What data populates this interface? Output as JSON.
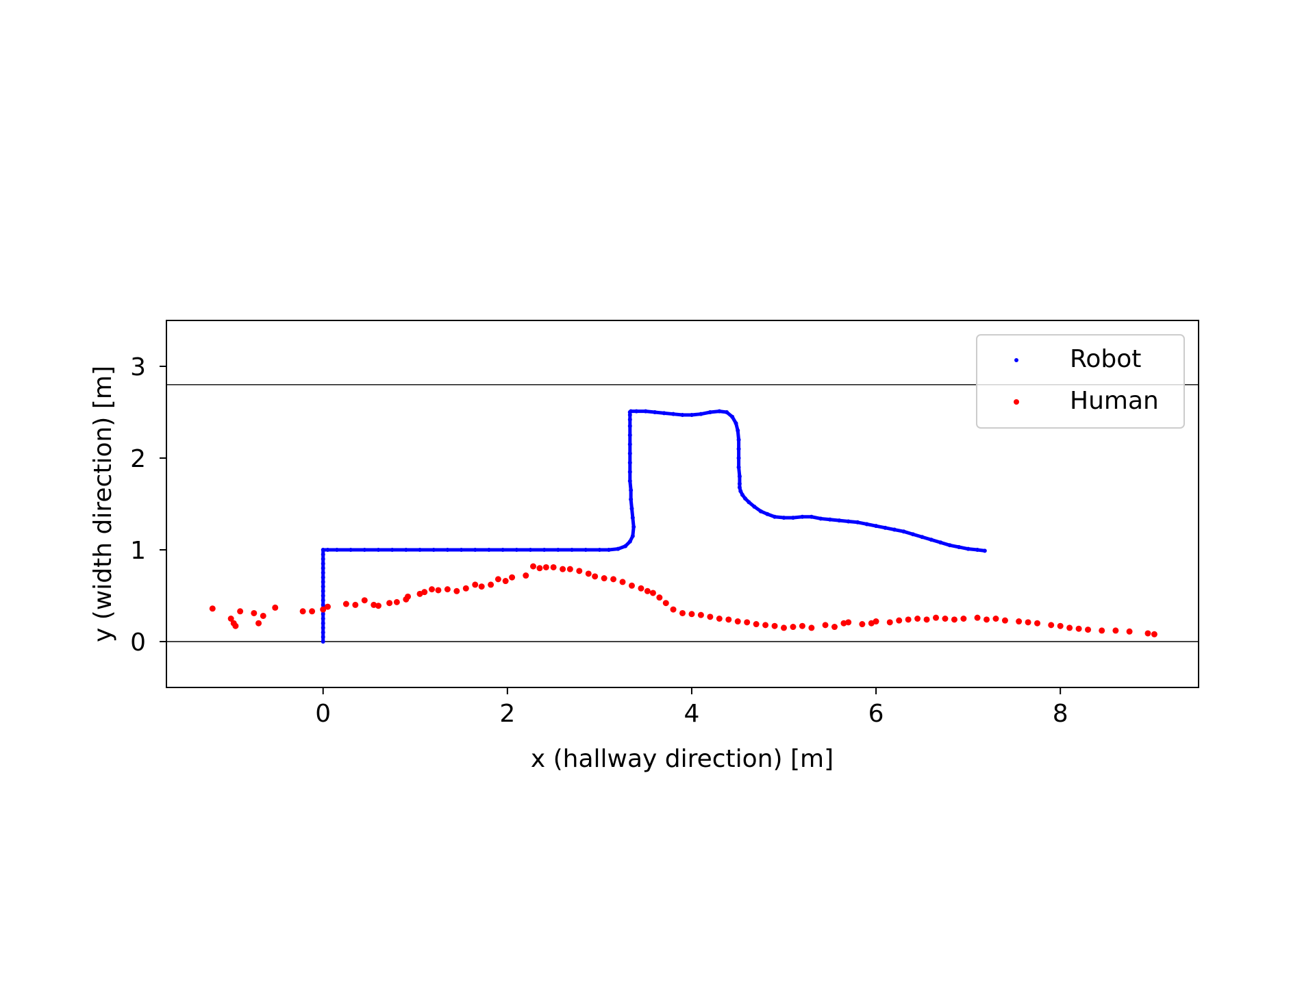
{
  "chart_data": {
    "type": "scatter",
    "xlabel": "x (hallway direction) [m]",
    "ylabel": "y (width direction) [m]",
    "xlim": [
      -1.7,
      9.5
    ],
    "ylim": [
      -0.5,
      3.5
    ],
    "xticks": [
      0,
      2,
      4,
      6,
      8
    ],
    "yticks": [
      0,
      1,
      2,
      3
    ],
    "hlines": [
      0,
      2.8
    ],
    "grid": false,
    "legend": "top-right",
    "series": [
      {
        "name": "Robot",
        "color": "#0000ff",
        "marker": "small-dot",
        "x": [
          0.0,
          0.0,
          0.0,
          0.0,
          0.0,
          0.0,
          0.0,
          0.0,
          0.0,
          0.0,
          0.0,
          0.0,
          0.0,
          0.0,
          0.0,
          0.0,
          0.0,
          0.0,
          0.0,
          0.0,
          0.0,
          0.05,
          0.15,
          0.3,
          0.45,
          0.6,
          0.75,
          0.9,
          1.05,
          1.2,
          1.35,
          1.5,
          1.65,
          1.8,
          1.95,
          2.1,
          2.25,
          2.4,
          2.55,
          2.7,
          2.85,
          3.0,
          3.1,
          3.2,
          3.28,
          3.33,
          3.36,
          3.37,
          3.36,
          3.35,
          3.34,
          3.34,
          3.33,
          3.33,
          3.33,
          3.33,
          3.33,
          3.33,
          3.33,
          3.33,
          3.33,
          3.33,
          3.33,
          3.34,
          3.4,
          3.5,
          3.6,
          3.7,
          3.8,
          3.9,
          4.0,
          4.1,
          4.2,
          4.3,
          4.38,
          4.44,
          4.48,
          4.5,
          4.51,
          4.51,
          4.51,
          4.51,
          4.52,
          4.52,
          4.52,
          4.53,
          4.55,
          4.58,
          4.62,
          4.68,
          4.75,
          4.82,
          4.9,
          5.0,
          5.1,
          5.2,
          5.3,
          5.4,
          5.5,
          5.6,
          5.7,
          5.8,
          5.9,
          6.0,
          6.1,
          6.2,
          6.3,
          6.4,
          6.5,
          6.6,
          6.7,
          6.8,
          6.9,
          7.0,
          7.1,
          7.18
        ],
        "y": [
          0.0,
          0.05,
          0.1,
          0.15,
          0.2,
          0.25,
          0.3,
          0.35,
          0.4,
          0.45,
          0.5,
          0.55,
          0.6,
          0.65,
          0.7,
          0.75,
          0.8,
          0.85,
          0.9,
          0.95,
          1.0,
          1.0,
          1.0,
          1.0,
          1.0,
          1.0,
          1.0,
          1.0,
          1.0,
          1.0,
          1.0,
          1.0,
          1.0,
          1.0,
          1.0,
          1.0,
          1.0,
          1.0,
          1.0,
          1.0,
          1.0,
          1.0,
          1.0,
          1.01,
          1.04,
          1.09,
          1.15,
          1.25,
          1.35,
          1.45,
          1.55,
          1.65,
          1.75,
          1.85,
          1.95,
          2.05,
          2.15,
          2.25,
          2.35,
          2.42,
          2.47,
          2.5,
          2.5,
          2.51,
          2.51,
          2.51,
          2.5,
          2.49,
          2.48,
          2.47,
          2.47,
          2.48,
          2.5,
          2.51,
          2.5,
          2.45,
          2.38,
          2.3,
          2.2,
          2.1,
          2.0,
          1.9,
          1.8,
          1.72,
          1.68,
          1.64,
          1.6,
          1.56,
          1.52,
          1.47,
          1.42,
          1.39,
          1.36,
          1.35,
          1.35,
          1.36,
          1.36,
          1.34,
          1.33,
          1.32,
          1.31,
          1.3,
          1.28,
          1.26,
          1.24,
          1.22,
          1.2,
          1.17,
          1.14,
          1.11,
          1.08,
          1.05,
          1.03,
          1.01,
          1.0,
          0.99
        ]
      },
      {
        "name": "Human",
        "color": "#ff0000",
        "marker": "dot",
        "x": [
          -1.2,
          -1.0,
          -0.95,
          -0.97,
          -0.9,
          -0.75,
          -0.7,
          -0.65,
          -0.52,
          -0.22,
          -0.12,
          0.0,
          0.05,
          0.25,
          0.35,
          0.45,
          0.55,
          0.6,
          0.72,
          0.8,
          0.9,
          0.92,
          1.05,
          1.1,
          1.18,
          1.25,
          1.35,
          1.45,
          1.55,
          1.65,
          1.72,
          1.82,
          1.9,
          1.98,
          2.05,
          2.2,
          2.28,
          2.35,
          2.42,
          2.5,
          2.6,
          2.68,
          2.78,
          2.88,
          2.95,
          3.05,
          3.15,
          3.25,
          3.35,
          3.45,
          3.52,
          3.58,
          3.65,
          3.72,
          3.8,
          3.9,
          4.0,
          4.1,
          4.2,
          4.3,
          4.4,
          4.5,
          4.6,
          4.7,
          4.8,
          4.9,
          5.0,
          5.1,
          5.2,
          5.3,
          5.45,
          5.55,
          5.65,
          5.7,
          5.85,
          5.95,
          6.0,
          6.15,
          6.25,
          6.35,
          6.45,
          6.55,
          6.65,
          6.75,
          6.85,
          6.95,
          7.1,
          7.2,
          7.3,
          7.4,
          7.55,
          7.65,
          7.75,
          7.9,
          8.0,
          8.1,
          8.2,
          8.3,
          8.45,
          8.6,
          8.75,
          8.95,
          9.02
        ],
        "y": [
          0.36,
          0.25,
          0.17,
          0.2,
          0.33,
          0.31,
          0.2,
          0.28,
          0.37,
          0.33,
          0.33,
          0.35,
          0.38,
          0.41,
          0.4,
          0.45,
          0.4,
          0.39,
          0.42,
          0.43,
          0.46,
          0.49,
          0.52,
          0.54,
          0.57,
          0.56,
          0.57,
          0.55,
          0.58,
          0.62,
          0.6,
          0.62,
          0.68,
          0.66,
          0.7,
          0.72,
          0.82,
          0.8,
          0.81,
          0.81,
          0.79,
          0.79,
          0.77,
          0.74,
          0.71,
          0.69,
          0.68,
          0.65,
          0.61,
          0.58,
          0.55,
          0.53,
          0.48,
          0.42,
          0.35,
          0.31,
          0.3,
          0.29,
          0.27,
          0.25,
          0.24,
          0.22,
          0.21,
          0.19,
          0.18,
          0.17,
          0.15,
          0.16,
          0.17,
          0.15,
          0.18,
          0.16,
          0.2,
          0.21,
          0.19,
          0.2,
          0.22,
          0.21,
          0.23,
          0.24,
          0.25,
          0.24,
          0.26,
          0.25,
          0.24,
          0.25,
          0.26,
          0.24,
          0.25,
          0.23,
          0.22,
          0.21,
          0.2,
          0.18,
          0.17,
          0.15,
          0.14,
          0.13,
          0.12,
          0.12,
          0.11,
          0.09,
          0.08
        ]
      }
    ]
  }
}
